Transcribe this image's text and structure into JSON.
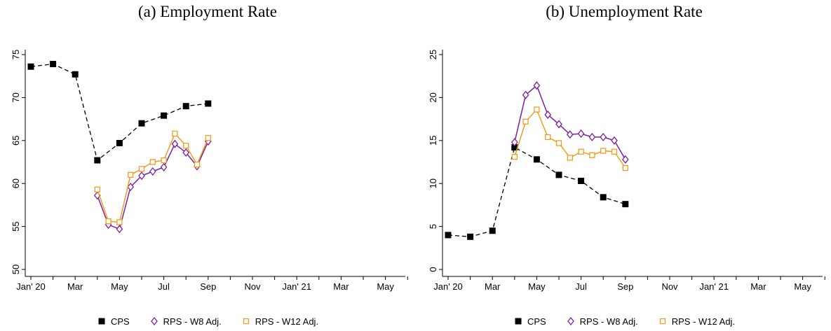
{
  "chart_data": [
    {
      "type": "line",
      "title": "(a) Employment Rate",
      "xlabel": "",
      "ylabel": "",
      "ylim": [
        50,
        75
      ],
      "yticks": [
        "50",
        "55",
        "60",
        "65",
        "70",
        "75"
      ],
      "xticks": [
        "Jan' 20",
        "Mar",
        "May",
        "Jul",
        "Sep",
        "Nov",
        "Jan' 21",
        "Mar",
        "May"
      ],
      "legend": "bottom",
      "grid": false,
      "series": [
        {
          "name": "CPS",
          "color": "#000000",
          "marker": "square",
          "dash": true,
          "x": [
            1,
            2,
            3,
            4,
            5,
            6,
            7,
            8,
            9
          ],
          "y": [
            73.6,
            73.9,
            72.7,
            62.7,
            64.7,
            67.0,
            67.9,
            69.0,
            69.3
          ]
        },
        {
          "name": "RPS - W8 Adj.",
          "color": "#7b1fa2",
          "marker": "diamond",
          "dash": false,
          "x": [
            4.0,
            4.5,
            5.0,
            5.5,
            6.0,
            6.5,
            7.0,
            7.5,
            8.0,
            8.5,
            9.0
          ],
          "y": [
            58.6,
            55.2,
            54.7,
            59.6,
            60.9,
            61.4,
            61.9,
            64.6,
            63.6,
            62.0,
            64.9
          ]
        },
        {
          "name": "RPS - W12 Adj.",
          "color": "#f39c1f",
          "marker": "square-open",
          "dash": false,
          "x": [
            4.0,
            4.5,
            5.0,
            5.5,
            6.0,
            6.5,
            7.0,
            7.5,
            8.0,
            8.5,
            9.0
          ],
          "y": [
            59.3,
            55.6,
            55.5,
            61.0,
            61.7,
            62.5,
            62.7,
            65.8,
            64.4,
            62.2,
            65.3
          ]
        }
      ]
    },
    {
      "type": "line",
      "title": "(b) Unemployment Rate",
      "xlabel": "",
      "ylabel": "",
      "ylim": [
        0,
        25
      ],
      "yticks": [
        "0",
        "5",
        "10",
        "15",
        "20",
        "25"
      ],
      "xticks": [
        "Jan' 20",
        "Mar",
        "May",
        "Jul",
        "Sep",
        "Nov",
        "Jan' 21",
        "Mar",
        "May"
      ],
      "legend": "bottom",
      "grid": false,
      "series": [
        {
          "name": "CPS",
          "color": "#000000",
          "marker": "square",
          "dash": true,
          "x": [
            1,
            2,
            3,
            4,
            5,
            6,
            7,
            8,
            9
          ],
          "y": [
            4.0,
            3.8,
            4.5,
            14.2,
            12.8,
            11.0,
            10.3,
            8.4,
            7.6
          ]
        },
        {
          "name": "RPS - W8 Adj.",
          "color": "#7b1fa2",
          "marker": "diamond",
          "dash": false,
          "x": [
            4.0,
            4.5,
            5.0,
            5.5,
            6.0,
            6.5,
            7.0,
            7.5,
            8.0,
            8.5,
            9.0
          ],
          "y": [
            14.8,
            20.3,
            21.4,
            18.0,
            16.9,
            15.7,
            15.8,
            15.4,
            15.4,
            15.0,
            12.8
          ]
        },
        {
          "name": "RPS - W12 Adj.",
          "color": "#f39c1f",
          "marker": "square-open",
          "dash": false,
          "x": [
            4.0,
            4.5,
            5.0,
            5.5,
            6.0,
            6.5,
            7.0,
            7.5,
            8.0,
            8.5,
            9.0
          ],
          "y": [
            13.1,
            17.2,
            18.6,
            15.4,
            14.7,
            13.0,
            13.7,
            13.3,
            13.8,
            13.7,
            11.8
          ]
        }
      ]
    }
  ]
}
